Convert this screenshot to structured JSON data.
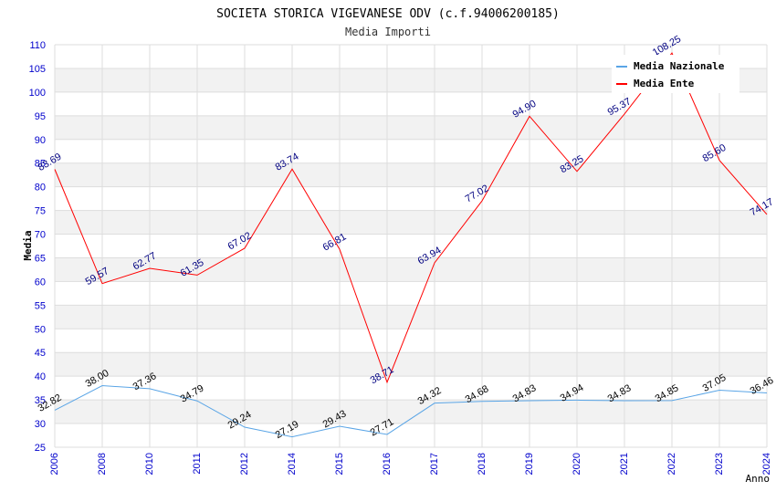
{
  "chart_data": {
    "type": "line",
    "title": "SOCIETA STORICA VIGEVANESE ODV (c.f.94006200185)",
    "subtitle": "Media Importi",
    "xlabel": "Anno",
    "ylabel": "Media",
    "ylim": [
      25,
      110
    ],
    "ytick_step": 5,
    "grid": true,
    "legend_position": "top-right",
    "categories": [
      "2006",
      "2008",
      "2010",
      "2011",
      "2012",
      "2014",
      "2015",
      "2016",
      "2017",
      "2018",
      "2019",
      "2020",
      "2021",
      "2022",
      "2023",
      "2024"
    ],
    "series": [
      {
        "name": "Media Nazionale",
        "color": "#5aa5e6",
        "label_color": "#000000",
        "values": [
          32.82,
          38.0,
          37.36,
          34.79,
          29.24,
          27.19,
          29.43,
          27.71,
          34.32,
          34.68,
          34.83,
          34.94,
          34.83,
          34.85,
          37.05,
          36.46
        ],
        "labels": [
          "32.82",
          "38.00",
          "37.36",
          "34.79",
          "29.24",
          "27.19",
          "29.43",
          "27.71",
          "34.32",
          "34.68",
          "34.83",
          "34.94",
          "34.83",
          "34.85",
          "37.05",
          "36.46"
        ]
      },
      {
        "name": "Media Ente",
        "color": "#ff0000",
        "label_color": "#000080",
        "values": [
          83.69,
          59.57,
          62.77,
          61.35,
          67.02,
          83.74,
          66.81,
          38.71,
          63.94,
          77.02,
          94.9,
          83.25,
          95.37,
          108.25,
          85.6,
          74.17
        ],
        "labels": [
          "83.69",
          "59.57",
          "62.77",
          "61.35",
          "67.02",
          "83.74",
          "66.81",
          "38.71",
          "63.94",
          "77.02",
          "94.90",
          "83.25",
          "95.37",
          "108.25",
          "85.60",
          "74.17"
        ]
      }
    ],
    "colors": {
      "axis_tick_text": "#0000cc",
      "grid_band": "#f2f2f2",
      "grid_line": "#dddddd",
      "title_text": "#000000",
      "subtitle_text": "#333333"
    }
  }
}
